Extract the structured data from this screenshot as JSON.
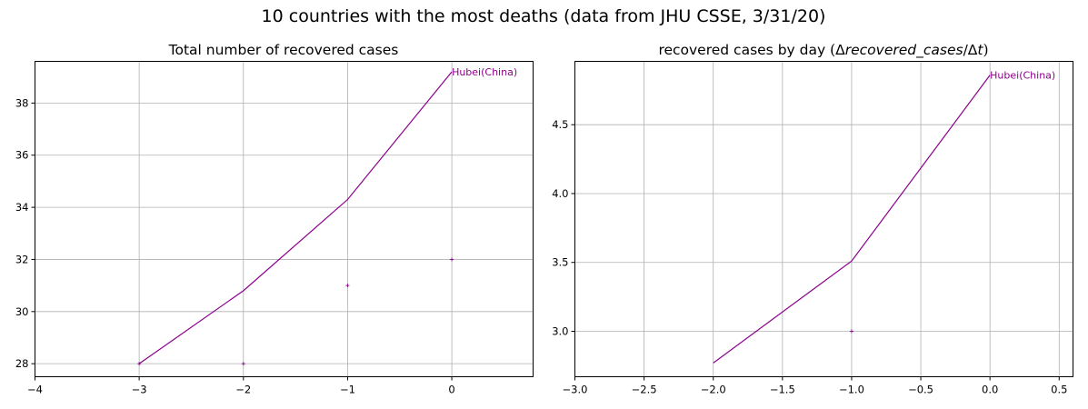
{
  "figure": {
    "suptitle": "10 countries with the most deaths (data from JHU CSSE, 3/31/20)"
  },
  "chart_data": [
    {
      "type": "line",
      "title": "Total number of recovered cases",
      "xlabel": "",
      "ylabel": "",
      "xlim": [
        -4,
        0.78
      ],
      "ylim": [
        27.5,
        39.6
      ],
      "xticks": [
        -4,
        -3,
        -2,
        -1,
        0
      ],
      "xtick_labels": [
        "−4",
        "−3",
        "−2",
        "−1",
        "0"
      ],
      "yticks": [
        28,
        30,
        32,
        34,
        36,
        38
      ],
      "ytick_labels": [
        "28",
        "30",
        "32",
        "34",
        "36",
        "38"
      ],
      "grid": true,
      "series": [
        {
          "name": "Hubei(China)",
          "color": "#8b008b",
          "line": {
            "x": [
              -3,
              -2,
              -1,
              0
            ],
            "y": [
              28.0,
              30.8,
              34.3,
              39.2
            ]
          },
          "markers": {
            "x": [
              -3,
              -2,
              -1,
              0
            ],
            "y": [
              28,
              28,
              31,
              32
            ]
          }
        }
      ],
      "annotations": [
        {
          "text": "Hubei(China)",
          "x": 0,
          "y": 39.2,
          "color": "#8b008b"
        }
      ]
    },
    {
      "type": "line",
      "title": "recovered cases by day (Δrecovered_cases/Δt)",
      "title_parts": {
        "main": "recovered cases by day ",
        "open_paren": "(",
        "delta1": "Δ",
        "variable": "recovered_cases",
        "slash_delta": "/Δ",
        "t": "t",
        "close_paren": ")"
      },
      "xlabel": "",
      "ylabel": "",
      "xlim": [
        -3.0,
        0.6
      ],
      "ylim": [
        2.67,
        4.96
      ],
      "xticks": [
        -3.0,
        -2.5,
        -2.0,
        -1.5,
        -1.0,
        -0.5,
        0.0,
        0.5
      ],
      "xtick_labels": [
        "−3.0",
        "−2.5",
        "−2.0",
        "−1.5",
        "−1.0",
        "−0.5",
        "0.0",
        "0.5"
      ],
      "yticks": [
        3.0,
        3.5,
        4.0,
        4.5
      ],
      "ytick_labels": [
        "3.0",
        "3.5",
        "4.0",
        "4.5"
      ],
      "grid": true,
      "series": [
        {
          "name": "Hubei(China)",
          "color": "#8b008b",
          "line": {
            "x": [
              -2,
              -1,
              0
            ],
            "y": [
              2.77,
              3.51,
              4.86
            ]
          },
          "markers": {
            "x": [
              -1
            ],
            "y": [
              3.0
            ]
          }
        }
      ],
      "annotations": [
        {
          "text": "Hubei(China)",
          "x": 0,
          "y": 4.86,
          "color": "#8b008b"
        }
      ]
    }
  ]
}
